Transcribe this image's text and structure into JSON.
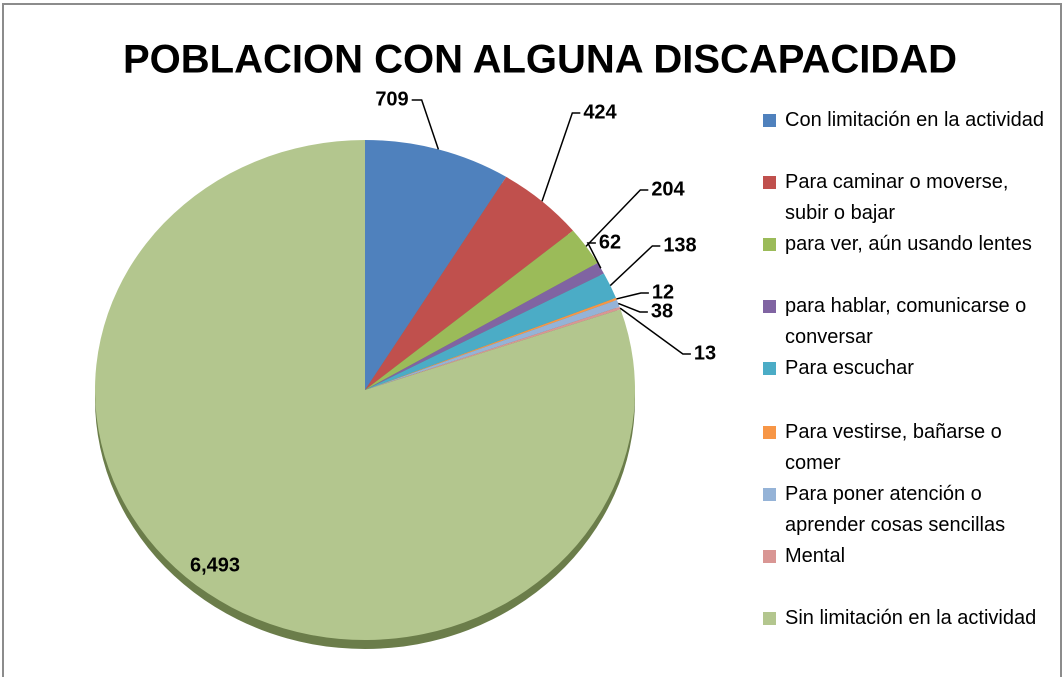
{
  "chart_data": {
    "type": "pie",
    "title": "POBLACION CON ALGUNA DISCAPACIDAD",
    "categories": [
      "Con limitación en la actividad",
      "Para caminar o moverse, subir o bajar",
      "para ver, aún usando lentes",
      "para hablar, comunicarse o conversar",
      "Para escuchar",
      "Para vestirse, bañarse o comer",
      "Para poner atención o aprender cosas sencillas",
      "Mental",
      "Sin limitación en la actividad"
    ],
    "values": [
      709,
      424,
      204,
      62,
      138,
      12,
      38,
      13,
      6493
    ],
    "value_labels": [
      "709",
      "424",
      "204",
      "62",
      "138",
      "12",
      "38",
      "13",
      "6,493"
    ],
    "colors": [
      "#4f81bd",
      "#c0504d",
      "#9bbb59",
      "#8064a2",
      "#4bacc6",
      "#f79646",
      "#95b3d7",
      "#d99694",
      "#b3c68e"
    ],
    "legend": "right"
  }
}
